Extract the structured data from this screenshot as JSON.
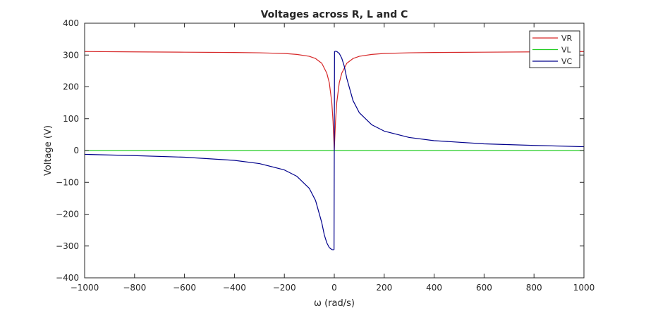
{
  "chart_data": {
    "type": "line",
    "title": "Voltages across R, L and C",
    "xlabel": "ω (rad/s)",
    "ylabel": "Voltage (V)",
    "xlim": [
      -1000,
      1000
    ],
    "ylim": [
      -400,
      400
    ],
    "xticks": [
      -1000,
      -800,
      -600,
      -400,
      -200,
      0,
      200,
      400,
      600,
      800,
      1000
    ],
    "yticks": [
      -400,
      -300,
      -200,
      -100,
      0,
      100,
      200,
      300,
      400
    ],
    "xtick_labels": [
      "−1000",
      "−800",
      "−600",
      "−400",
      "−200",
      "0",
      "200",
      "400",
      "600",
      "800",
      "1000"
    ],
    "ytick_labels": [
      "−400",
      "−300",
      "−200",
      "−100",
      "0",
      "100",
      "200",
      "300",
      "400"
    ],
    "grid": true,
    "legend_position": "top-right",
    "series": [
      {
        "name": "VR",
        "color": "#d62728",
        "x": [
          -1000,
          -800,
          -600,
          -400,
          -300,
          -200,
          -150,
          -100,
          -75,
          -50,
          -30,
          -20,
          -10,
          -5,
          -1,
          0,
          1,
          5,
          10,
          20,
          30,
          50,
          75,
          100,
          150,
          200,
          300,
          400,
          600,
          800,
          1000
        ],
        "y": [
          311,
          310,
          309,
          308,
          307,
          305,
          302,
          296,
          289,
          274,
          243,
          213,
          151,
          92,
          20,
          0,
          20,
          92,
          151,
          213,
          243,
          274,
          289,
          296,
          302,
          305,
          307,
          308,
          309,
          310,
          311
        ]
      },
      {
        "name": "VL",
        "color": "#22cc22",
        "x": [
          -1000,
          1000
        ],
        "y": [
          0,
          0
        ]
      },
      {
        "name": "VC",
        "color": "#00008b",
        "x": [
          -1000,
          -800,
          -600,
          -400,
          -300,
          -200,
          -150,
          -100,
          -75,
          -50,
          -40,
          -30,
          -20,
          -10,
          -5,
          -1,
          1,
          5,
          10,
          20,
          30,
          40,
          50,
          75,
          100,
          150,
          200,
          300,
          400,
          600,
          800,
          1000
        ],
        "y": [
          -12,
          -16,
          -21,
          -31,
          -41,
          -61,
          -81,
          -119,
          -157,
          -227,
          -265,
          -290,
          -305,
          -311,
          -312,
          -311,
          311,
          312,
          311,
          305,
          290,
          265,
          227,
          157,
          119,
          81,
          61,
          41,
          31,
          21,
          16,
          12
        ]
      }
    ]
  }
}
